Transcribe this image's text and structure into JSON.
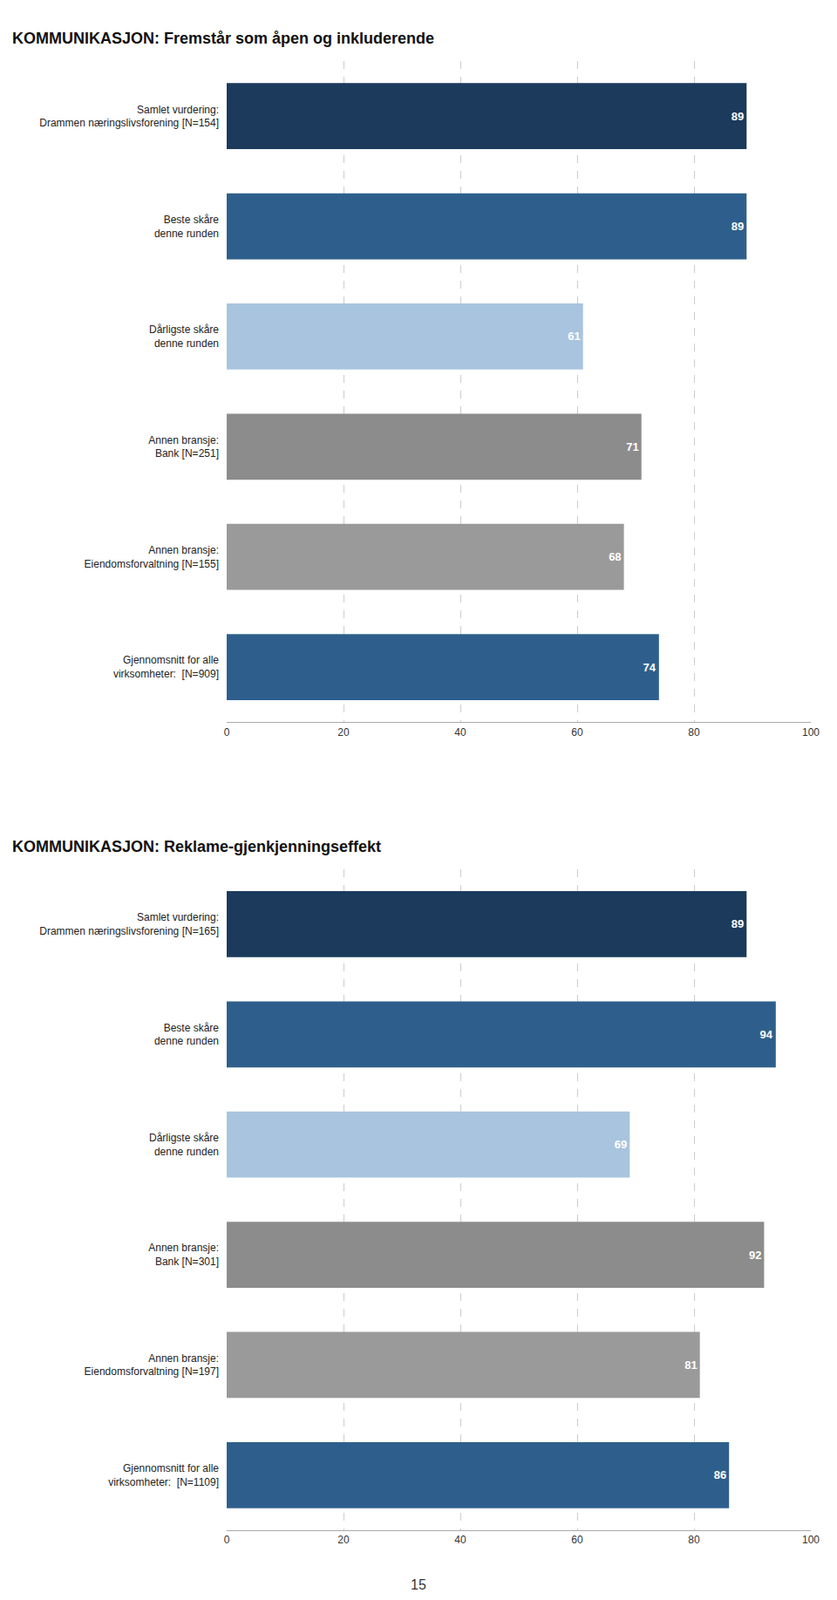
{
  "chart_data": [
    {
      "type": "bar",
      "orientation": "horizontal",
      "title": "KOMMUNIKASJON: Fremstår som åpen og inkluderende",
      "categories": [
        "Samlet vurdering:\nDrammen næringslivsforening [N=154]",
        "Beste skåre\ndenne runden",
        "Dårligste skåre\ndenne runden",
        "Annen bransje:\nBank [N=251]",
        "Annen bransje:\nEiendomsforvaltning [N=155]",
        "Gjennomsnitt for alle\nvirksomheter:  [N=909]"
      ],
      "values": [
        89,
        89,
        61,
        71,
        68,
        74
      ],
      "colors": [
        "#1b3a5c",
        "#2e5f8c",
        "#a8c4df",
        "#8c8c8c",
        "#9a9a9a",
        "#2e5f8c"
      ],
      "xlim": [
        0,
        100
      ],
      "xticks": [
        0,
        20,
        40,
        60,
        80,
        100
      ],
      "grid": true,
      "data_labels": true
    },
    {
      "type": "bar",
      "orientation": "horizontal",
      "title": "KOMMUNIKASJON: Reklame-gjenkjenningseffekt",
      "categories": [
        "Samlet vurdering:\nDrammen næringslivsforening [N=165]",
        "Beste skåre\ndenne runden",
        "Dårligste skåre\ndenne runden",
        "Annen bransje:\nBank [N=301]",
        "Annen bransje:\nEiendomsforvaltning [N=197]",
        "Gjennomsnitt for alle\nvirksomheter:  [N=1109]"
      ],
      "values": [
        89,
        94,
        69,
        92,
        81,
        86
      ],
      "colors": [
        "#1b3a5c",
        "#2e5f8c",
        "#a8c4df",
        "#8c8c8c",
        "#9a9a9a",
        "#2e5f8c"
      ],
      "xlim": [
        0,
        100
      ],
      "xticks": [
        0,
        20,
        40,
        60,
        80,
        100
      ],
      "grid": true,
      "data_labels": true
    }
  ],
  "annotations": [
    "15"
  ]
}
